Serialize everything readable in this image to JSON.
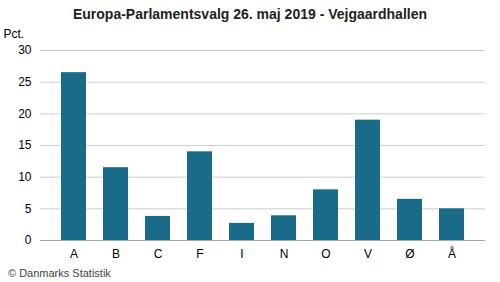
{
  "chart_data": {
    "type": "bar",
    "title": "Europa-Parlamentsvalg 26. maj 2019 - Vejgaardhallen",
    "ylabel": "Pct.",
    "caption": "© Danmarks Statistik",
    "categories": [
      "A",
      "B",
      "C",
      "F",
      "I",
      "N",
      "O",
      "V",
      "Ø",
      "Å"
    ],
    "values": [
      26.5,
      11.5,
      3.8,
      14.0,
      2.7,
      3.9,
      8.0,
      19.0,
      6.5,
      5.0
    ],
    "color": "#1a6a8a",
    "ylim": [
      0,
      30
    ],
    "yticks": [
      0,
      5,
      10,
      15,
      20,
      25,
      30
    ],
    "grid": true
  }
}
